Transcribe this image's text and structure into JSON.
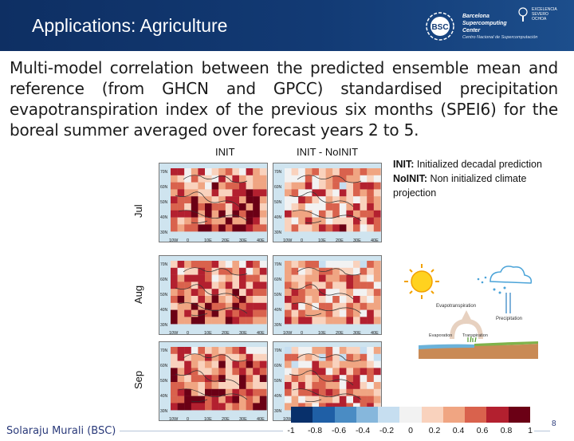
{
  "header": {
    "title": "Applications: Agriculture",
    "bsc_mark": "BSC",
    "bsc_lines": [
      "Barcelona",
      "Supercomputing",
      "Center"
    ],
    "bsc_subtitle": "Centro Nacional de Supercomputación",
    "excellence_lines": [
      "EXCELENCIA",
      "SEVERO",
      "OCHOA"
    ]
  },
  "intro_text": "Multi-model correlation between the predicted ensemble mean and reference (from GHCN and GPCC) standardised precipitation evapotranspiration index of the previous six months (SPEI6) for the boreal summer averaged over forecast years 2 to 5.",
  "figure": {
    "columns": [
      "INIT",
      "INIT - NoINIT"
    ],
    "rows": [
      "Jul",
      "Aug",
      "Sep"
    ],
    "lat_labels": [
      "70N",
      "60N",
      "50N",
      "40N",
      "30N"
    ],
    "lon_labels": [
      "10W",
      "0",
      "10E",
      "20E",
      "30E",
      "40E"
    ]
  },
  "legend": {
    "init_term": "INIT:",
    "init_desc": "Initialized decadal prediction",
    "noinit_term": "NoINIT:",
    "noinit_desc": "Non initialized climate projection"
  },
  "diagram": {
    "evapotranspiration": "Evapotranspiration",
    "evaporation": "Evaporation",
    "transpiration": "Transpiration",
    "precipitation": "Precipitation"
  },
  "colorbar": {
    "ticks": [
      "-1",
      "-0.8",
      "-0.6",
      "-0.4",
      "-0.2",
      "0",
      "0.2",
      "0.4",
      "0.6",
      "0.8",
      "1"
    ],
    "colors": [
      "#08306b",
      "#1f5fa6",
      "#4a8cc4",
      "#86b7dc",
      "#c6def0",
      "#f2f2f2",
      "#f9d2bd",
      "#f0a582",
      "#d9624d",
      "#b3202f",
      "#6b0015"
    ]
  },
  "footer": {
    "author": "Solaraju Murali (BSC)",
    "page": "8"
  }
}
